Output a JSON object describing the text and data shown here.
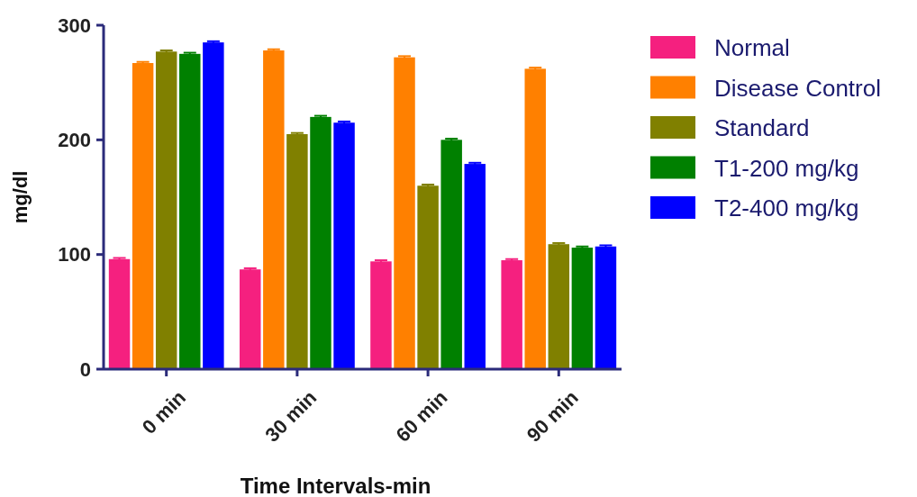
{
  "chart_data": {
    "type": "bar",
    "xlabel": "Time Intervals-min",
    "ylabel": "mg/dl",
    "categories": [
      "0 min",
      "30 min",
      "60 min",
      "90 min"
    ],
    "series": [
      {
        "name": "Normal",
        "color": "#f5207f",
        "values": [
          96,
          87,
          94,
          95
        ],
        "errors": [
          1,
          1,
          1,
          1
        ]
      },
      {
        "name": "Disease Control",
        "color": "#ff8000",
        "values": [
          267,
          278,
          272,
          262
        ],
        "errors": [
          1,
          1,
          1,
          1
        ]
      },
      {
        "name": "Standard",
        "color": "#808000",
        "values": [
          277,
          205,
          160,
          109
        ],
        "errors": [
          1,
          1,
          1,
          1
        ]
      },
      {
        "name": "T1-200 mg/kg",
        "color": "#008000",
        "values": [
          275,
          220,
          200,
          106
        ],
        "errors": [
          1,
          1,
          1,
          1
        ]
      },
      {
        "name": "T2-400 mg/kg",
        "color": "#0000ff",
        "values": [
          285,
          215,
          179,
          107
        ],
        "errors": [
          1,
          1,
          1,
          1
        ]
      }
    ],
    "ylim": [
      0,
      300
    ],
    "yticks": [
      0,
      100,
      200,
      300
    ],
    "grid": false,
    "legend": "right"
  }
}
